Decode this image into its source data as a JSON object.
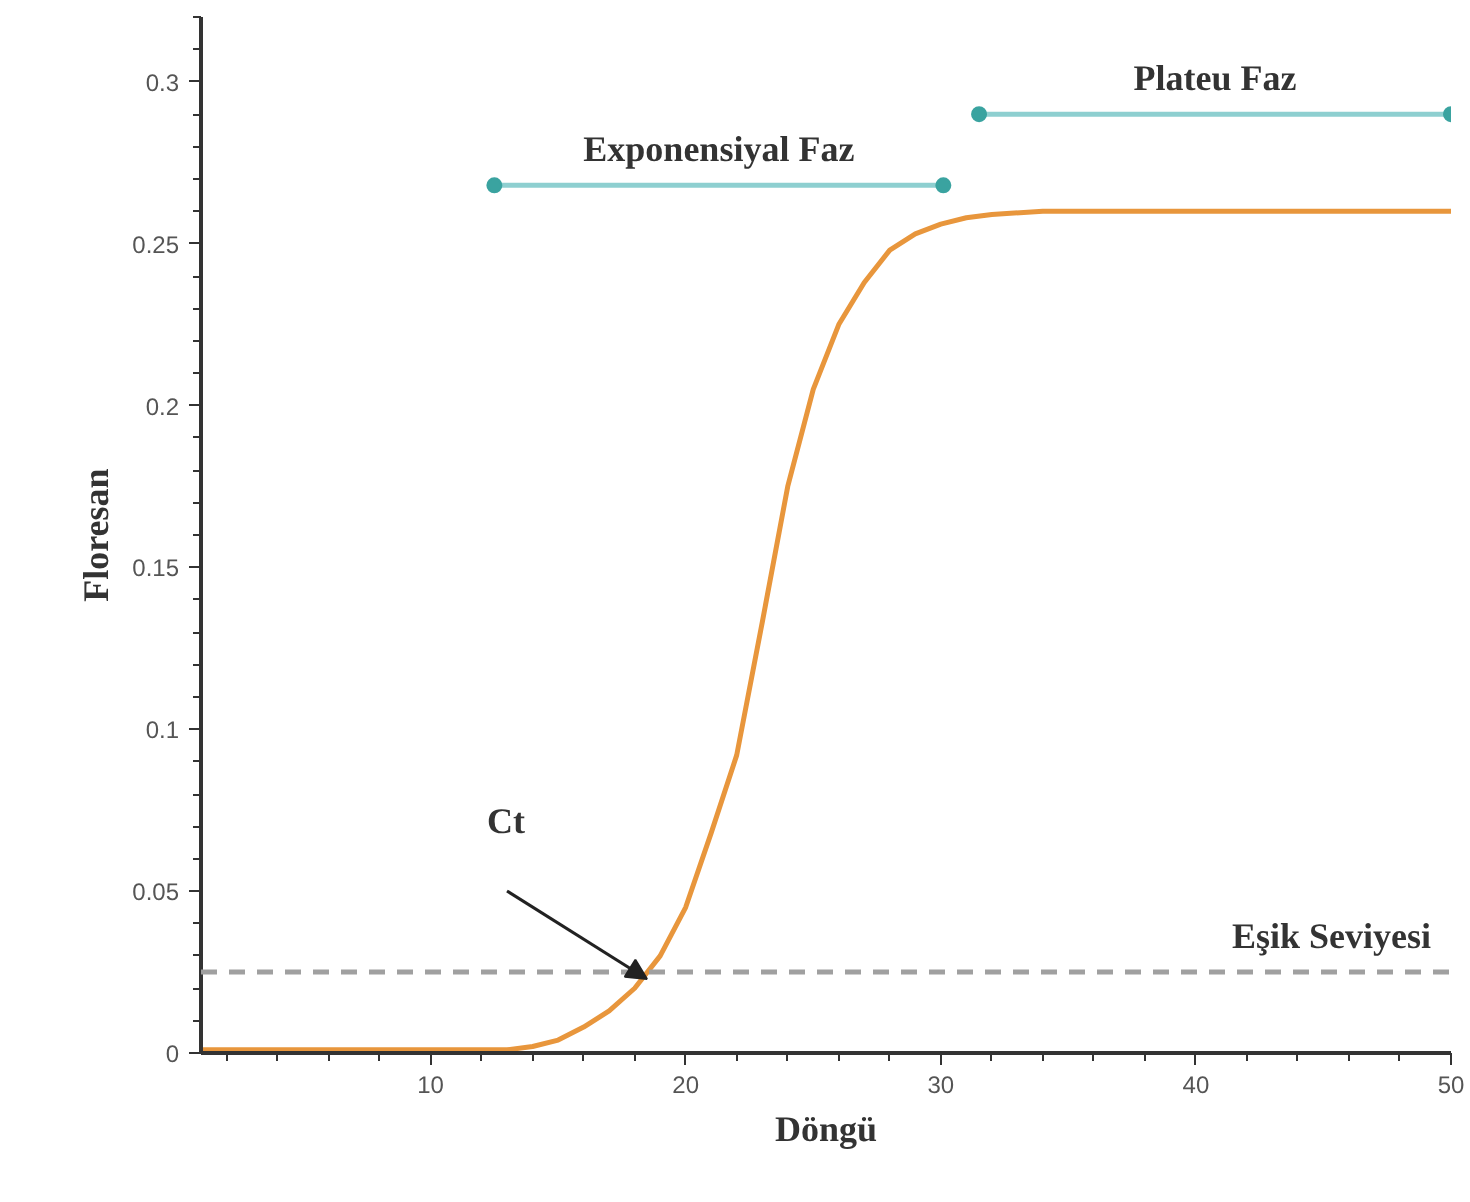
{
  "chart_data": {
    "type": "line",
    "xlabel": "Döngü",
    "ylabel": "Floresan",
    "xlim": [
      1,
      50
    ],
    "ylim": [
      0,
      0.32
    ],
    "xticks": [
      10,
      20,
      30,
      40,
      50
    ],
    "yticks": [
      0,
      0.05,
      0.1,
      0.15,
      0.2,
      0.25,
      0.3
    ],
    "grid": false,
    "marker": "none",
    "line_style": "solid",
    "series": [
      {
        "color": "#e8963c",
        "x": [
          1,
          5,
          10,
          13,
          14,
          15,
          16,
          17,
          18,
          19,
          20,
          21,
          22,
          23,
          24,
          25,
          26,
          27,
          28,
          29,
          30,
          31,
          32,
          34,
          36,
          40,
          45,
          50
        ],
        "values": [
          0.001,
          0.001,
          0.001,
          0.001,
          0.002,
          0.004,
          0.008,
          0.013,
          0.02,
          0.03,
          0.045,
          0.068,
          0.092,
          0.133,
          0.175,
          0.205,
          0.225,
          0.238,
          0.248,
          0.253,
          0.256,
          0.258,
          0.259,
          0.26,
          0.26,
          0.26,
          0.26,
          0.26
        ]
      },
      {
        "name": "Exponensiyal Faz",
        "color": "#8ecfd0",
        "marker": "circle",
        "x": [
          12.5,
          30.1
        ],
        "values": [
          0.268,
          0.268
        ]
      },
      {
        "name": "Plateu Faz",
        "color": "#8ecfd0",
        "marker": "circle",
        "x": [
          31.5,
          50
        ],
        "values": [
          0.29,
          0.29
        ]
      }
    ],
    "ref_lines": [
      {
        "axis": "y",
        "value": 0.025,
        "label": "Eşik Seviyesi",
        "color": "#a0a0a0",
        "line_style": "dashed"
      }
    ],
    "annotations": [
      "Ct"
    ]
  }
}
